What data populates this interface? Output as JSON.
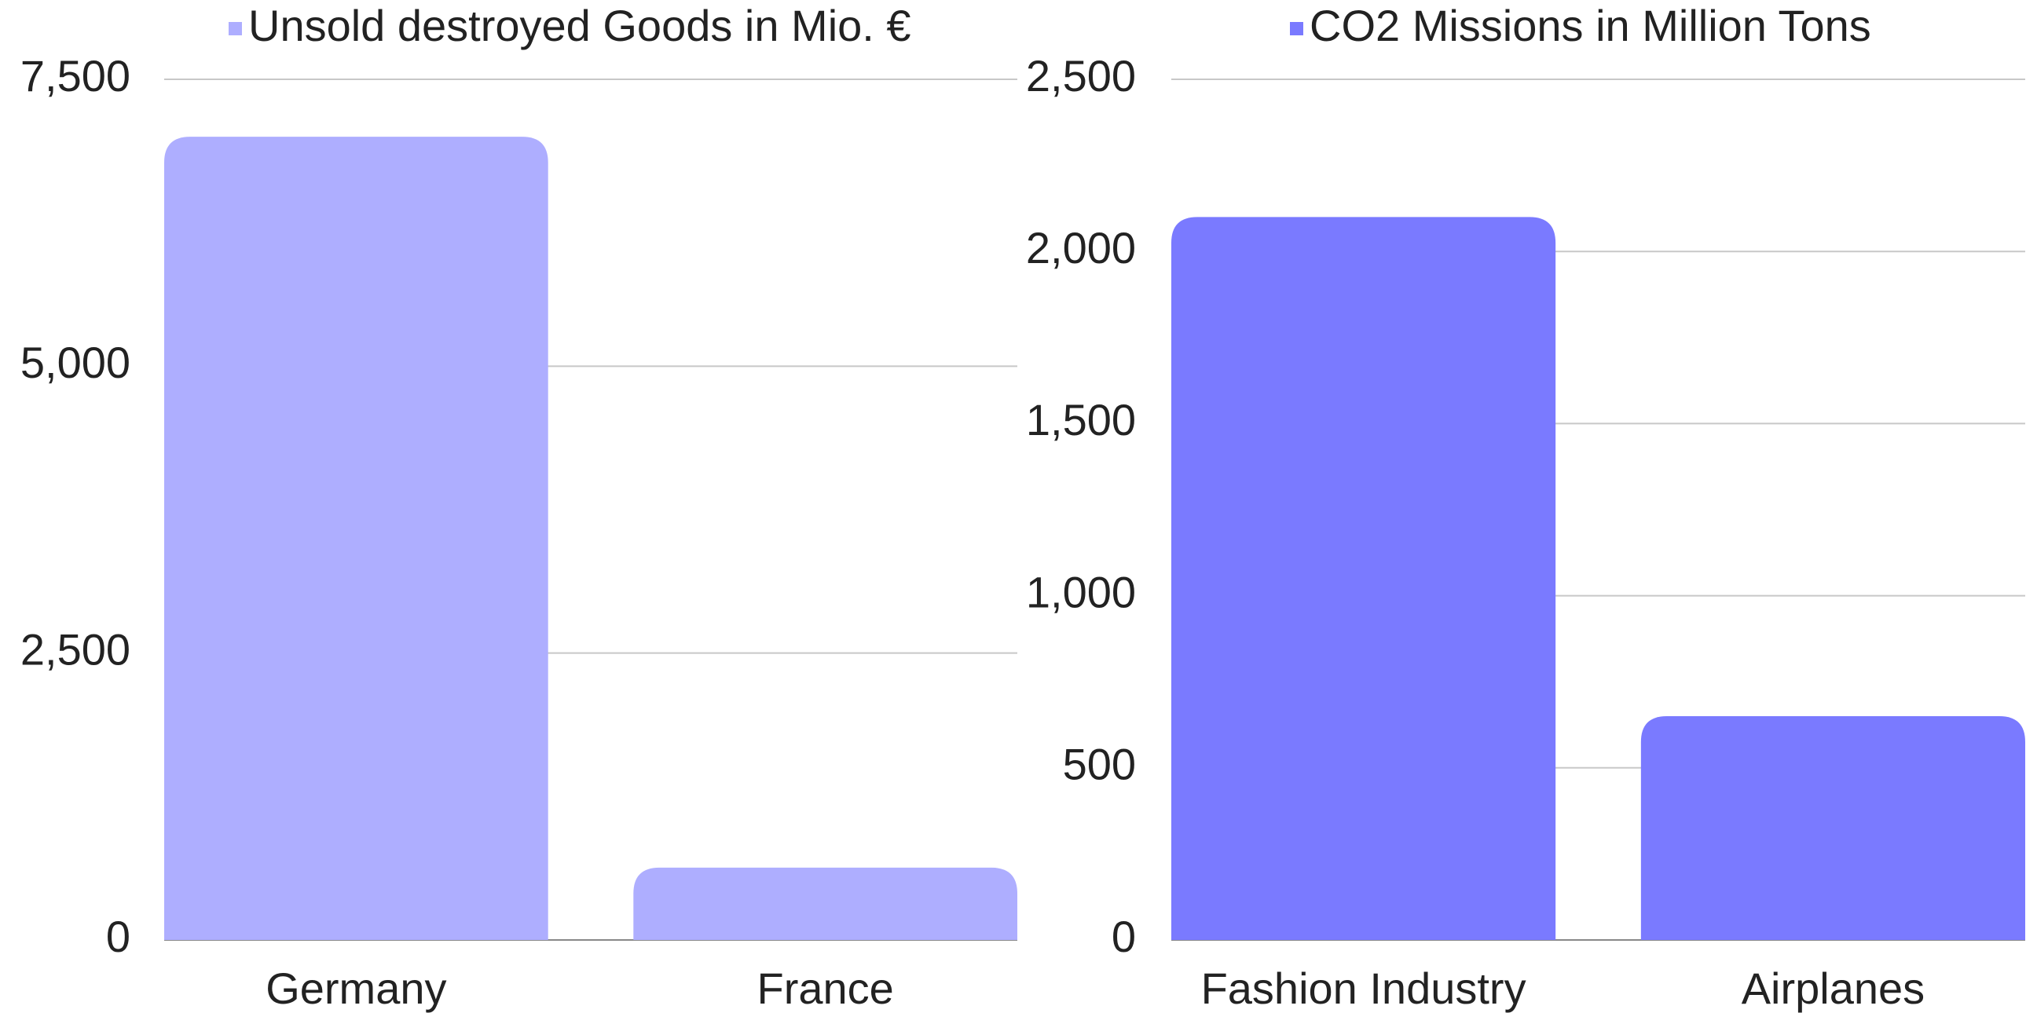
{
  "chart_data": [
    {
      "type": "bar",
      "categories": [
        "Germany",
        "France"
      ],
      "series": [
        {
          "name": "Unsold destroyed Goods in Mio. €",
          "color": "#aeaeff",
          "values": [
            7000,
            630
          ]
        }
      ],
      "ylim": [
        0,
        7500
      ],
      "yticks": [
        0,
        {
          "value": 2500,
          "label": "2,500"
        },
        {
          "value": 5000,
          "label": "5,000"
        },
        {
          "value": 7500,
          "label": "7,500"
        }
      ],
      "grid": true
    },
    {
      "type": "bar",
      "categories": [
        "Fashion Industry",
        "Airplanes"
      ],
      "series": [
        {
          "name": "CO2 Missions in Million Tons",
          "color": "#7a7aff",
          "values": [
            2100,
            650
          ]
        }
      ],
      "ylim": [
        0,
        2500
      ],
      "yticks": [
        0,
        500,
        {
          "value": 1000,
          "label": "1,000"
        },
        {
          "value": 1500,
          "label": "1,500"
        },
        {
          "value": 2000,
          "label": "2,000"
        },
        {
          "value": 2500,
          "label": "2,500"
        }
      ],
      "grid": true
    }
  ]
}
